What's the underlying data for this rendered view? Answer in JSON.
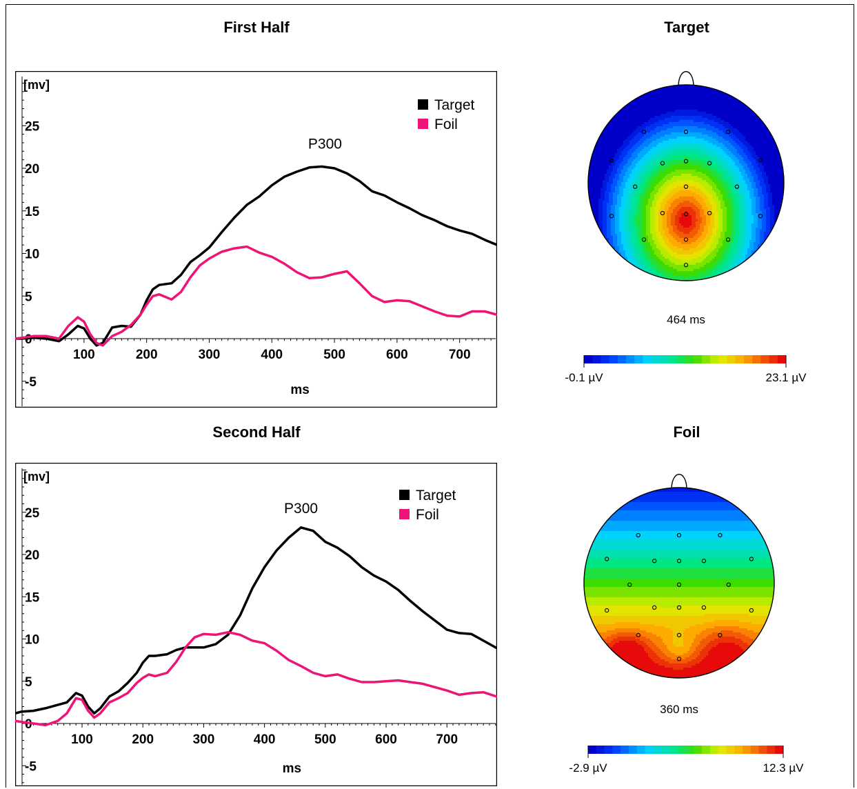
{
  "panels": {
    "first_half_title": "First Half",
    "second_half_title": "Second Half",
    "target_title": "Target",
    "foil_title": "Foil"
  },
  "chart_data": [
    {
      "type": "line",
      "title": "First Half",
      "ylabel": "[mv]",
      "xlabel": "ms",
      "xlim": [
        -10,
        780
      ],
      "ylim": [
        -7,
        30
      ],
      "xticks": [
        100,
        200,
        300,
        400,
        500,
        600,
        700
      ],
      "yticks": [
        -5,
        0,
        5,
        10,
        15,
        20,
        25
      ],
      "legend_position": "top-right",
      "annotation": {
        "text": "P300",
        "x": 485,
        "y": 22.3
      },
      "series": [
        {
          "name": "Target",
          "color": "#000000",
          "x": [
            -10,
            0,
            20,
            40,
            60,
            75,
            90,
            100,
            110,
            120,
            130,
            145,
            160,
            175,
            190,
            200,
            210,
            220,
            240,
            255,
            270,
            285,
            300,
            320,
            340,
            360,
            380,
            400,
            420,
            440,
            460,
            480,
            500,
            520,
            540,
            560,
            580,
            600,
            620,
            640,
            660,
            680,
            700,
            720,
            740,
            760,
            780
          ],
          "y": [
            0,
            0,
            0.1,
            0,
            -0.3,
            0.5,
            1.5,
            1.2,
            0,
            -0.8,
            -0.5,
            1.3,
            1.5,
            1.4,
            2.8,
            4.5,
            5.8,
            6.3,
            6.5,
            7.5,
            9,
            9.8,
            10.7,
            12.5,
            14.2,
            15.7,
            16.7,
            18,
            19,
            19.6,
            20.1,
            20.2,
            20,
            19.4,
            18.5,
            17.3,
            16.8,
            16,
            15.3,
            14.5,
            13.9,
            13.2,
            12.7,
            12.3,
            11.6,
            11,
            10.4
          ]
        },
        {
          "name": "Foil",
          "color": "#ee1477",
          "x": [
            -10,
            0,
            20,
            40,
            60,
            75,
            90,
            100,
            110,
            120,
            130,
            145,
            160,
            175,
            190,
            200,
            210,
            220,
            240,
            255,
            270,
            285,
            300,
            320,
            340,
            360,
            380,
            400,
            420,
            440,
            460,
            480,
            500,
            520,
            540,
            560,
            580,
            600,
            620,
            640,
            660,
            680,
            700,
            720,
            740,
            760,
            780
          ],
          "y": [
            0,
            0.1,
            0.3,
            0.3,
            0,
            1.5,
            2.5,
            2,
            0.5,
            -0.5,
            -0.8,
            0.3,
            0.8,
            1.6,
            2.8,
            4,
            5,
            5.2,
            4.6,
            5.5,
            7.2,
            8.6,
            9.4,
            10.2,
            10.6,
            10.8,
            10.1,
            9.6,
            8.8,
            7.8,
            7.1,
            7.2,
            7.6,
            7.9,
            6.5,
            5,
            4.3,
            4.5,
            4.4,
            3.8,
            3.2,
            2.7,
            2.6,
            3.2,
            3.2,
            2.8,
            2.2
          ]
        }
      ]
    },
    {
      "type": "line",
      "title": "Second Half",
      "ylabel": "[mv]",
      "xlabel": "ms",
      "xlim": [
        -10,
        790
      ],
      "ylim": [
        -7,
        30
      ],
      "xticks": [
        100,
        200,
        300,
        400,
        500,
        600,
        700
      ],
      "yticks": [
        -5,
        0,
        5,
        10,
        15,
        20,
        25
      ],
      "legend_position": "top-right",
      "annotation": {
        "text": "P300",
        "x": 460,
        "y": 24.9
      },
      "series": [
        {
          "name": "Target",
          "color": "#000000",
          "x": [
            -10,
            0,
            20,
            40,
            60,
            75,
            90,
            100,
            110,
            120,
            130,
            145,
            160,
            175,
            190,
            200,
            210,
            220,
            240,
            255,
            270,
            285,
            300,
            320,
            340,
            360,
            380,
            400,
            420,
            440,
            460,
            480,
            500,
            520,
            540,
            560,
            580,
            600,
            620,
            640,
            660,
            680,
            700,
            720,
            740,
            760,
            790
          ],
          "y": [
            1.2,
            1.4,
            1.5,
            1.8,
            2.2,
            2.5,
            3.6,
            3.3,
            2,
            1.2,
            1.8,
            3.2,
            3.8,
            4.8,
            6,
            7.2,
            8,
            8,
            8.2,
            8.7,
            9,
            9,
            9,
            9.4,
            10.5,
            12.8,
            16,
            18.5,
            20.5,
            22,
            23.2,
            22.8,
            21.5,
            20.8,
            19.8,
            18.5,
            17.5,
            16.8,
            15.8,
            14.5,
            13.3,
            12.2,
            11.1,
            10.7,
            10.6,
            9.8,
            8.6
          ]
        },
        {
          "name": "Foil",
          "color": "#ee1477",
          "x": [
            -10,
            0,
            20,
            40,
            60,
            75,
            90,
            100,
            110,
            120,
            130,
            145,
            160,
            175,
            190,
            200,
            210,
            220,
            240,
            255,
            270,
            285,
            300,
            320,
            340,
            360,
            380,
            400,
            420,
            440,
            460,
            480,
            500,
            520,
            540,
            560,
            580,
            600,
            620,
            640,
            660,
            680,
            700,
            720,
            740,
            760,
            790
          ],
          "y": [
            0.3,
            0.2,
            0,
            -0.2,
            0.3,
            1.2,
            3,
            2.8,
            1.5,
            0.7,
            1.2,
            2.5,
            3,
            3.6,
            4.8,
            5.4,
            5.8,
            5.6,
            6,
            7.3,
            9,
            10.2,
            10.6,
            10.5,
            10.8,
            10.5,
            9.8,
            9.5,
            8.6,
            7.5,
            6.8,
            6,
            5.6,
            5.8,
            5.3,
            4.9,
            4.9,
            5,
            5.1,
            4.9,
            4.7,
            4.3,
            3.9,
            3.4,
            3.6,
            3.7,
            3
          ]
        }
      ]
    },
    {
      "type": "heatmap",
      "title": "Target",
      "time_label": "464 ms",
      "scale_min_label": "-0.1 µV",
      "scale_max_label": "23.1 µV"
    },
    {
      "type": "heatmap",
      "title": "Foil",
      "time_label": "360 ms",
      "scale_min_label": "-2.9 µV",
      "scale_max_label": "12.3 µV"
    }
  ],
  "colors": {
    "target": "#000000",
    "foil": "#ee1477"
  }
}
